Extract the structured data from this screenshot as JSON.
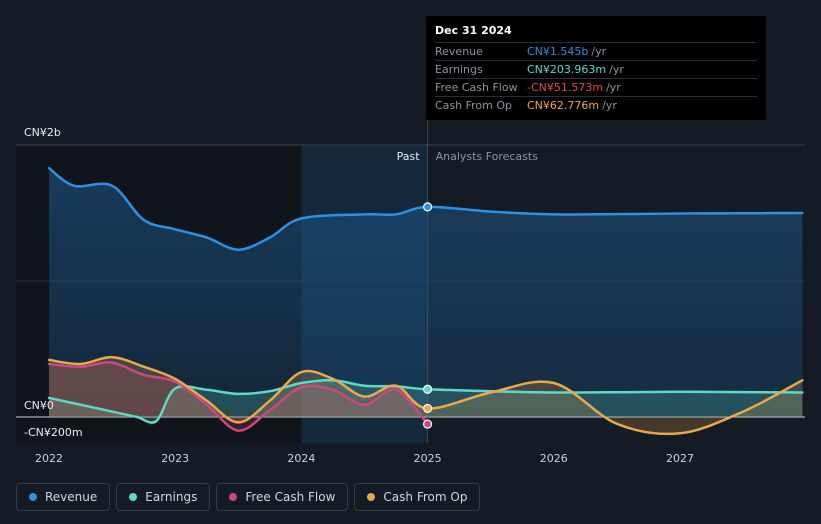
{
  "chart_data": {
    "type": "line",
    "y_axis": {
      "label_top": "CN¥2b",
      "label_zero": "CN¥0",
      "label_bottom": "-CN¥200m",
      "ylim": [
        -200,
        2000
      ],
      "unit": "CN¥m"
    },
    "x_axis": {
      "ticks": [
        "2022",
        "2023",
        "2024",
        "2025",
        "2026",
        "2027"
      ]
    },
    "past_label": "Past",
    "forecast_label": "Analysts Forecasts",
    "divider_x": 2025.0,
    "highlight_band": [
      2024.0,
      2025.0
    ],
    "series": [
      {
        "name": "Revenue",
        "color": "#2f8fe0",
        "fill": true,
        "points": [
          [
            2022.0,
            1830
          ],
          [
            2022.2,
            1700
          ],
          [
            2022.5,
            1700
          ],
          [
            2022.75,
            1450
          ],
          [
            2023.0,
            1380
          ],
          [
            2023.25,
            1320
          ],
          [
            2023.5,
            1230
          ],
          [
            2023.75,
            1320
          ],
          [
            2024.0,
            1460
          ],
          [
            2024.5,
            1490
          ],
          [
            2024.75,
            1490
          ],
          [
            2025.0,
            1545
          ],
          [
            2025.5,
            1510
          ],
          [
            2026.0,
            1490
          ],
          [
            2026.5,
            1492
          ],
          [
            2027.0,
            1496
          ],
          [
            2027.5,
            1498
          ],
          [
            2027.97,
            1500
          ]
        ]
      },
      {
        "name": "Earnings",
        "color": "#5fd8c9",
        "fill": true,
        "points": [
          [
            2022.0,
            140
          ],
          [
            2022.4,
            60
          ],
          [
            2022.6,
            20
          ],
          [
            2022.7,
            0
          ],
          [
            2022.85,
            -30
          ],
          [
            2023.0,
            210
          ],
          [
            2023.25,
            200
          ],
          [
            2023.5,
            170
          ],
          [
            2023.75,
            190
          ],
          [
            2024.0,
            250
          ],
          [
            2024.25,
            270
          ],
          [
            2024.5,
            230
          ],
          [
            2024.75,
            225
          ],
          [
            2025.0,
            204
          ],
          [
            2025.5,
            190
          ],
          [
            2026.0,
            180
          ],
          [
            2026.5,
            182
          ],
          [
            2027.0,
            185
          ],
          [
            2027.5,
            183
          ],
          [
            2027.97,
            180
          ]
        ]
      },
      {
        "name": "Free Cash Flow",
        "color": "#d0477f",
        "fill": true,
        "points": [
          [
            2022.0,
            390
          ],
          [
            2022.25,
            370
          ],
          [
            2022.5,
            400
          ],
          [
            2022.75,
            310
          ],
          [
            2023.0,
            260
          ],
          [
            2023.25,
            90
          ],
          [
            2023.5,
            -100
          ],
          [
            2023.75,
            50
          ],
          [
            2024.0,
            220
          ],
          [
            2024.25,
            200
          ],
          [
            2024.5,
            90
          ],
          [
            2024.75,
            200
          ],
          [
            2025.0,
            -52
          ]
        ]
      },
      {
        "name": "Cash From Op",
        "color": "#e9a94a",
        "fill": true,
        "points": [
          [
            2022.0,
            420
          ],
          [
            2022.25,
            390
          ],
          [
            2022.5,
            440
          ],
          [
            2022.75,
            370
          ],
          [
            2023.0,
            280
          ],
          [
            2023.25,
            120
          ],
          [
            2023.5,
            -40
          ],
          [
            2023.75,
            120
          ],
          [
            2024.0,
            330
          ],
          [
            2024.25,
            280
          ],
          [
            2024.5,
            150
          ],
          [
            2024.75,
            230
          ],
          [
            2025.0,
            63
          ],
          [
            2025.5,
            180
          ],
          [
            2026.0,
            250
          ],
          [
            2026.5,
            -50
          ],
          [
            2027.0,
            -120
          ],
          [
            2027.5,
            40
          ],
          [
            2027.97,
            270
          ]
        ]
      }
    ],
    "highlight_points": [
      {
        "series": "Revenue",
        "x": 2025.0,
        "y": 1545
      },
      {
        "series": "Earnings",
        "x": 2025.0,
        "y": 204
      },
      {
        "series": "Free Cash Flow",
        "x": 2025.0,
        "y": -52
      },
      {
        "series": "Cash From Op",
        "x": 2025.0,
        "y": 63
      }
    ]
  },
  "tooltip": {
    "date": "Dec 31 2024",
    "unit": "/yr",
    "rows": [
      {
        "label": "Revenue",
        "value": "CN¥1.545b",
        "color": "#2f8fe0"
      },
      {
        "label": "Earnings",
        "value": "CN¥203.963m",
        "color": "#5fd8c9"
      },
      {
        "label": "Free Cash Flow",
        "value": "-CN¥51.573m",
        "color": "#e5484d"
      },
      {
        "label": "Cash From Op",
        "value": "CN¥62.776m",
        "color": "#e9a94a"
      }
    ]
  },
  "legend": [
    {
      "label": "Revenue",
      "color": "#2f8fe0"
    },
    {
      "label": "Earnings",
      "color": "#5fd8c9"
    },
    {
      "label": "Free Cash Flow",
      "color": "#d0477f"
    },
    {
      "label": "Cash From Op",
      "color": "#e9a94a"
    }
  ]
}
